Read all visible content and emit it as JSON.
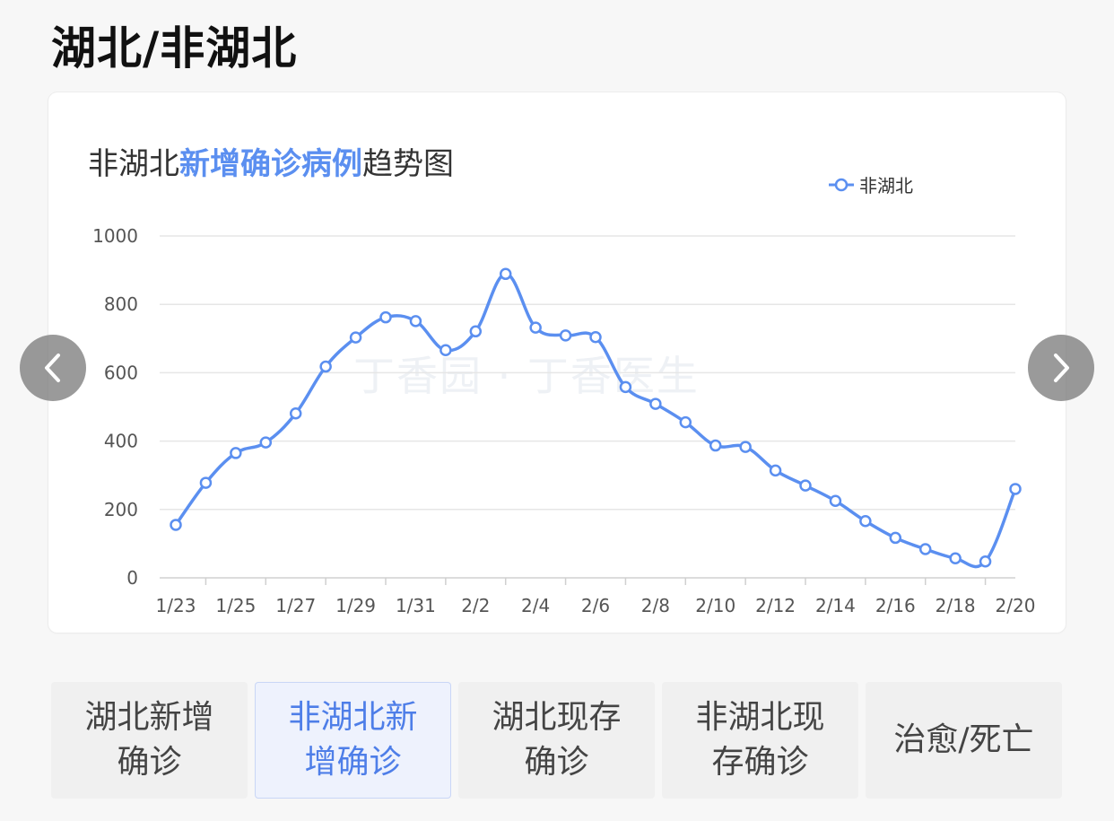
{
  "section_title": "湖北/非湖北",
  "chart_title": {
    "prefix": "非湖北",
    "highlight": "新增确诊病例",
    "suffix": "趋势图"
  },
  "legend_label": "非湖北",
  "watermark_text": "丁香园 · 丁香医生",
  "tabs": [
    {
      "label": "湖北新增确诊",
      "active": false
    },
    {
      "label": "非湖北新增确诊",
      "active": true
    },
    {
      "label": "湖北现存确诊",
      "active": false
    },
    {
      "label": "非湖北现存确诊",
      "active": false
    },
    {
      "label": "治愈/死亡",
      "active": false
    }
  ],
  "colors": {
    "series": "#5b8ff0",
    "grid": "#e6e6e6",
    "axis_text": "#555555"
  },
  "chart_data": {
    "type": "line",
    "title": "非湖北新增确诊病例趋势图",
    "x": [
      "1/23",
      "1/24",
      "1/25",
      "1/26",
      "1/27",
      "1/28",
      "1/29",
      "1/30",
      "1/31",
      "2/1",
      "2/2",
      "2/3",
      "2/4",
      "2/5",
      "2/6",
      "2/7",
      "2/8",
      "2/9",
      "2/10",
      "2/11",
      "2/12",
      "2/13",
      "2/14",
      "2/15",
      "2/16",
      "2/17",
      "2/18",
      "2/19",
      "2/20"
    ],
    "x_tick_labels": [
      "1/23",
      "1/25",
      "1/27",
      "1/29",
      "1/31",
      "2/2",
      "2/4",
      "2/6",
      "2/8",
      "2/10",
      "2/12",
      "2/14",
      "2/16",
      "2/18",
      "2/20"
    ],
    "series": [
      {
        "name": "非湖北",
        "values": [
          155,
          278,
          365,
          396,
          481,
          618,
          703,
          762,
          751,
          666,
          721,
          889,
          732,
          709,
          704,
          558,
          509,
          455,
          387,
          383,
          314,
          270,
          225,
          166,
          117,
          84,
          57,
          48,
          260
        ]
      }
    ],
    "ylim": [
      0,
      1000
    ],
    "yticks": [
      0,
      200,
      400,
      600,
      800,
      1000
    ],
    "grid": true,
    "legend": "top-right",
    "smooth": true
  }
}
